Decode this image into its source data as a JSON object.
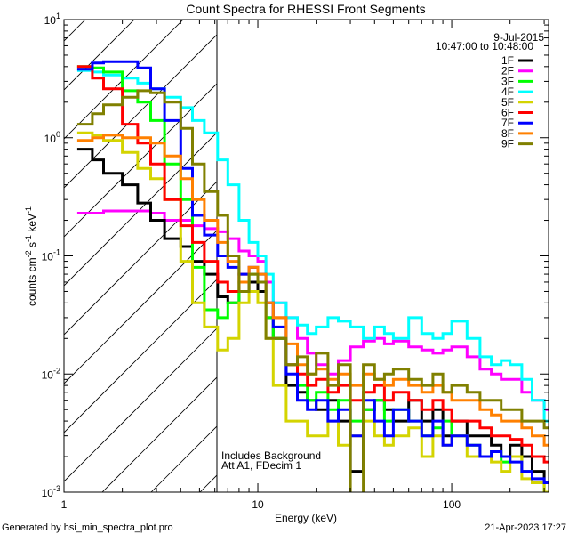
{
  "chart_data": {
    "type": "line",
    "title": "Count Spectra for RHESSI Front Segments",
    "xlabel": "Energy (keV)",
    "ylabel": {
      "base": "counts cm",
      "parts": [
        "counts cm",
        "-2",
        " s",
        "-1",
        " keV",
        "-1"
      ]
    },
    "xscale": "log",
    "yscale": "log",
    "xlim": [
      1,
      316
    ],
    "ylim": [
      0.001,
      10
    ],
    "xticks": [
      {
        "value": 1,
        "label": "1"
      },
      {
        "value": 10,
        "label": "10"
      },
      {
        "value": 100,
        "label": "100"
      }
    ],
    "yticks": [
      {
        "value": 10,
        "base": "10",
        "exp": "1"
      },
      {
        "value": 1,
        "base": "10",
        "exp": "0"
      },
      {
        "value": 0.1,
        "base": "10",
        "exp": "-1"
      },
      {
        "value": 0.01,
        "base": "10",
        "exp": "-2"
      },
      {
        "value": 0.001,
        "base": "10",
        "exp": "-3"
      }
    ],
    "legend_position": "top-right",
    "date": "9-Jul-2015",
    "time_range": "10:47:00 to 10:48:00",
    "annotations": [
      "Includes Background",
      "Att A1, FDecim 1"
    ],
    "shaded_region_max_energy": 6.15,
    "energy": [
      1.17,
      1.4,
      1.6,
      2.0,
      2.4,
      2.8,
      3.3,
      4.0,
      4.6,
      5.3,
      6.2,
      7.0,
      8.0,
      9.0,
      10,
      11,
      12,
      14,
      16,
      18,
      20,
      23,
      26,
      30,
      35,
      40,
      45,
      50,
      60,
      70,
      80,
      90,
      100,
      120,
      140,
      160,
      180,
      200,
      230,
      260,
      300
    ],
    "series": [
      {
        "name": "1F",
        "color": "#000000",
        "values": [
          0.8,
          0.65,
          0.5,
          0.4,
          0.28,
          0.2,
          0.14,
          0.12,
          0.09,
          0.07,
          0.045,
          0.04,
          0.05,
          0.06,
          0.05,
          0.03,
          0.02,
          0.008,
          0.007,
          0.006,
          0.005,
          0.006,
          0.004,
          0.0015,
          0.005,
          0.006,
          0.005,
          0.004,
          0.006,
          0.004,
          0.005,
          0.003,
          0.004,
          0.003,
          0.003,
          0.0025,
          0.002,
          0.0025,
          0.002,
          0.0015,
          0.0012
        ]
      },
      {
        "name": "2F",
        "color": "#ff00ff",
        "values": [
          0.23,
          0.23,
          0.24,
          0.24,
          0.24,
          0.23,
          0.2,
          0.2,
          0.18,
          0.17,
          0.16,
          0.14,
          0.11,
          0.1,
          0.09,
          0.06,
          0.04,
          0.03,
          0.02,
          0.015,
          0.012,
          0.01,
          0.013,
          0.017,
          0.019,
          0.02,
          0.018,
          0.019,
          0.017,
          0.016,
          0.015,
          0.016,
          0.017,
          0.014,
          0.011,
          0.01,
          0.009,
          0.009,
          0.007,
          0.006,
          0.005
        ]
      },
      {
        "name": "3F",
        "color": "#00ff00",
        "values": [
          4.0,
          3.9,
          3.6,
          2.5,
          2.0,
          1.4,
          0.6,
          0.3,
          0.08,
          0.035,
          0.03,
          0.04,
          0.06,
          0.07,
          0.06,
          0.03,
          0.02,
          0.012,
          0.008,
          0.006,
          0.007,
          0.005,
          0.006,
          0.004,
          0.005,
          0.006,
          0.004,
          0.005,
          0.004,
          0.003,
          0.0035,
          0.004,
          0.003,
          0.0025,
          0.002,
          0.0022,
          0.0018,
          0.002,
          0.0015,
          0.0012,
          0.001
        ]
      },
      {
        "name": "4F",
        "color": "#00ffff",
        "values": [
          3.7,
          3.6,
          3.4,
          3.2,
          2.9,
          2.6,
          2.2,
          1.8,
          1.4,
          1.1,
          0.65,
          0.4,
          0.2,
          0.13,
          0.1,
          0.07,
          0.04,
          0.03,
          0.026,
          0.022,
          0.025,
          0.03,
          0.028,
          0.025,
          0.02,
          0.025,
          0.022,
          0.02,
          0.03,
          0.022,
          0.02,
          0.022,
          0.028,
          0.02,
          0.014,
          0.012,
          0.013,
          0.012,
          0.009,
          0.006,
          0.004
        ]
      },
      {
        "name": "5F",
        "color": "#d4d400",
        "values": [
          1.1,
          1.05,
          0.95,
          0.75,
          0.55,
          0.45,
          0.3,
          0.09,
          0.04,
          0.025,
          0.016,
          0.02,
          0.04,
          0.05,
          0.04,
          0.02,
          0.008,
          0.004,
          0.004,
          0.003,
          0.003,
          0.004,
          0.0025,
          0.003,
          0.004,
          0.003,
          0.0025,
          0.003,
          0.0035,
          0.002,
          0.003,
          0.0025,
          0.003,
          0.002,
          0.002,
          0.0018,
          0.0015,
          0.002,
          0.0013,
          0.0012,
          0.001
        ]
      },
      {
        "name": "6F",
        "color": "#ff0000",
        "values": [
          4.0,
          3.2,
          2.6,
          1.3,
          0.9,
          0.6,
          0.3,
          0.18,
          0.13,
          0.09,
          0.06,
          0.05,
          0.07,
          0.08,
          0.06,
          0.04,
          0.03,
          0.012,
          0.01,
          0.008,
          0.009,
          0.007,
          0.008,
          0.006,
          0.007,
          0.008,
          0.006,
          0.007,
          0.006,
          0.005,
          0.006,
          0.005,
          0.004,
          0.004,
          0.0035,
          0.003,
          0.003,
          0.0028,
          0.0025,
          0.002,
          0.0018
        ]
      },
      {
        "name": "7F",
        "color": "#0000ff",
        "values": [
          3.8,
          4.3,
          4.4,
          4.4,
          3.9,
          2.6,
          1.4,
          0.55,
          0.22,
          0.15,
          0.1,
          0.08,
          0.07,
          0.08,
          0.07,
          0.04,
          0.025,
          0.01,
          0.006,
          0.005,
          0.006,
          0.004,
          0.005,
          0.003,
          0.006,
          0.004,
          0.003,
          0.005,
          0.004,
          0.003,
          0.004,
          0.0025,
          0.003,
          0.0025,
          0.002,
          0.0022,
          0.002,
          0.0018,
          0.0015,
          0.0013,
          0.0012
        ]
      },
      {
        "name": "8F",
        "color": "#ff8000",
        "values": [
          0.95,
          1.0,
          1.05,
          1.0,
          1.0,
          0.9,
          0.7,
          0.45,
          0.3,
          0.2,
          0.13,
          0.09,
          0.06,
          0.08,
          0.07,
          0.04,
          0.03,
          0.018,
          0.012,
          0.01,
          0.011,
          0.009,
          0.01,
          0.008,
          0.01,
          0.009,
          0.008,
          0.009,
          0.008,
          0.007,
          0.008,
          0.007,
          0.006,
          0.006,
          0.005,
          0.0045,
          0.004,
          0.004,
          0.0035,
          0.003,
          0.0025
        ]
      },
      {
        "name": "9F",
        "color": "#808000",
        "values": [
          1.3,
          1.6,
          1.9,
          2.2,
          2.5,
          2.4,
          2.0,
          1.2,
          0.6,
          0.35,
          0.22,
          0.1,
          0.05,
          0.07,
          0.06,
          0.02,
          0.02,
          0.012,
          0.014,
          0.01,
          0.015,
          0.008,
          0.012,
          0.0008,
          0.012,
          0.009,
          0.01,
          0.011,
          0.009,
          0.008,
          0.01,
          0.007,
          0.008,
          0.007,
          0.006,
          0.006,
          0.005,
          0.005,
          0.004,
          0.004,
          0.0035
        ]
      }
    ]
  },
  "footer": {
    "generated_by": "Generated by hsi_min_spectra_plot.pro",
    "timestamp": "21-Apr-2023 17:27"
  }
}
